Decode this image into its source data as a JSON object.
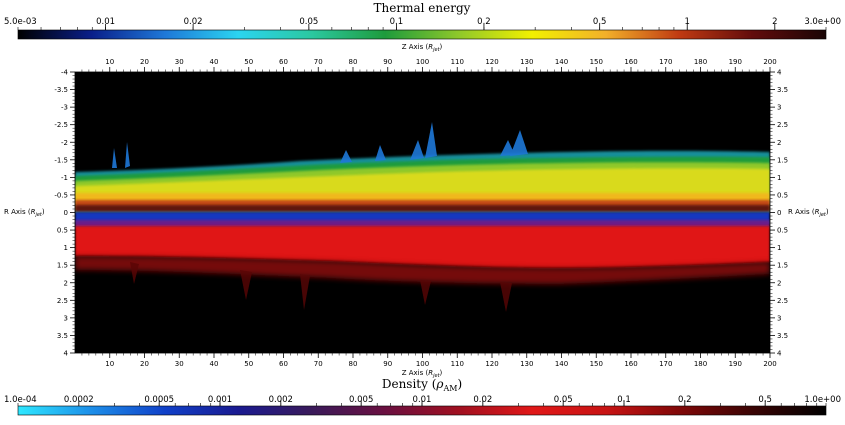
{
  "chart_data": [
    {
      "type": "heatmap",
      "panel": "top",
      "colorbar": {
        "title": "Thermal energy",
        "scale": "log",
        "range": [
          0.005,
          3.0
        ],
        "min_label": "5.0e-03",
        "max_label": "3.0e+00",
        "tick_labels": [
          "0.01",
          "0.02",
          "0.05",
          "0.1",
          "0.2",
          "0.5",
          "1",
          "2"
        ],
        "tick_values": [
          0.01,
          0.02,
          0.05,
          0.1,
          0.2,
          0.5,
          1,
          2
        ],
        "colormap": [
          "#000000",
          "#0a1f8a",
          "#1e78d8",
          "#2bd4f0",
          "#2bc8a0",
          "#1e9b3c",
          "#8fc82a",
          "#f2f000",
          "#f2b02a",
          "#c03a12",
          "#620c0c",
          "#1a0505"
        ]
      }
    },
    {
      "type": "heatmap",
      "panel": "bottom",
      "colorbar": {
        "title": "Density (ρ_AM)",
        "scale": "log",
        "range": [
          0.0001,
          1.0
        ],
        "min_label": "1.0e-04",
        "max_label": "1.0e+00",
        "tick_labels": [
          "0.0002",
          "0.0005",
          "0.001",
          "0.002",
          "0.005",
          "0.01",
          "0.02",
          "0.05",
          "0.1",
          "0.2",
          "0.5"
        ],
        "tick_values": [
          0.0002,
          0.0005,
          0.001,
          0.002,
          0.005,
          0.01,
          0.02,
          0.05,
          0.1,
          0.2,
          0.5
        ],
        "colormap": [
          "#2ee8ff",
          "#1d8ee8",
          "#1040c8",
          "#1a1a90",
          "#3a1a5a",
          "#6a1040",
          "#a01020",
          "#e01818",
          "#c81414",
          "#800808",
          "#3a0404",
          "#000000"
        ]
      }
    }
  ],
  "plot": {
    "x_axis_label": "Z Axis",
    "x_axis_unit": "(R_jet)",
    "x_range": [
      0,
      200
    ],
    "x_tick_labels": [
      "10",
      "20",
      "30",
      "40",
      "50",
      "60",
      "70",
      "80",
      "90",
      "100",
      "110",
      "120",
      "130",
      "140",
      "150",
      "160",
      "170",
      "180",
      "190",
      "200"
    ],
    "y_axis_label": "R Axis",
    "y_axis_unit": "(R_jet)",
    "y_range": [
      -4,
      4
    ],
    "y_tick_labels_left": [
      "-4",
      "-3.5",
      "-3",
      "-2.5",
      "-2",
      "-1.5",
      "-1",
      "-0.5",
      "0",
      "0.5",
      "1",
      "1.5",
      "2",
      "2.5",
      "3",
      "3.5",
      "4"
    ],
    "y_tick_labels_right": [
      "4",
      "3.5",
      "3",
      "2.5",
      "2",
      "1.5",
      "1",
      "0.5",
      "0",
      "0.5",
      "1",
      "1.5",
      "2",
      "2.5",
      "3",
      "3.5",
      "4"
    ],
    "y_tick_values": [
      -4,
      -3.5,
      -3,
      -2.5,
      -2,
      -1.5,
      -1,
      -0.5,
      0,
      0.5,
      1,
      1.5,
      2,
      2.5,
      3,
      3.5,
      4
    ]
  }
}
